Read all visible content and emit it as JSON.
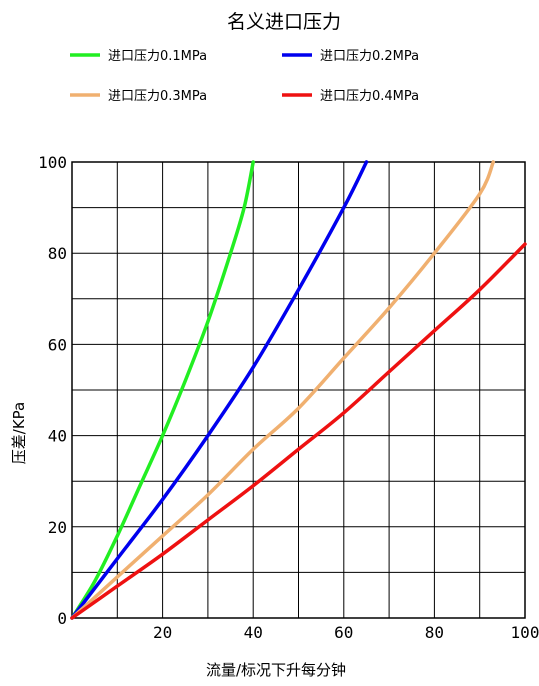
{
  "chart_data": {
    "type": "line",
    "title": "名义进口压力",
    "xlabel": "流量/标况下升每分钟",
    "ylabel": "压差/KPa",
    "xlim": [
      0,
      100
    ],
    "ylim": [
      0,
      100
    ],
    "x_ticks": [
      20,
      40,
      60,
      80,
      100
    ],
    "y_ticks": [
      0,
      20,
      40,
      60,
      80,
      100
    ],
    "x_gridlines": [
      0,
      10,
      20,
      30,
      40,
      50,
      60,
      70,
      80,
      90,
      100
    ],
    "y_gridlines": [
      0,
      10,
      20,
      30,
      40,
      50,
      60,
      70,
      80,
      90,
      100
    ],
    "grid": true,
    "legend_position": "top",
    "series": [
      {
        "name": "进口压力0.1MPa",
        "color": "#22ee22",
        "points": [
          [
            0,
            0
          ],
          [
            5,
            8
          ],
          [
            10,
            18
          ],
          [
            15,
            29
          ],
          [
            20,
            40
          ],
          [
            25,
            52
          ],
          [
            30,
            65
          ],
          [
            35,
            80
          ],
          [
            38,
            90
          ],
          [
            40,
            100
          ]
        ]
      },
      {
        "name": "进口压力0.2MPa",
        "color": "#0000ee",
        "points": [
          [
            0,
            0
          ],
          [
            10,
            13
          ],
          [
            20,
            26
          ],
          [
            30,
            40
          ],
          [
            40,
            55
          ],
          [
            50,
            72
          ],
          [
            60,
            90
          ],
          [
            65,
            100
          ]
        ]
      },
      {
        "name": "进口压力0.3MPa",
        "color": "#f0b070",
        "points": [
          [
            0,
            0
          ],
          [
            10,
            9
          ],
          [
            20,
            18
          ],
          [
            30,
            27
          ],
          [
            40,
            37
          ],
          [
            50,
            46
          ],
          [
            60,
            57
          ],
          [
            70,
            68
          ],
          [
            80,
            80
          ],
          [
            90,
            93
          ],
          [
            93,
            100
          ]
        ]
      },
      {
        "name": "进口压力0.4MPa",
        "color": "#ee1111",
        "points": [
          [
            0,
            0
          ],
          [
            10,
            7
          ],
          [
            20,
            14
          ],
          [
            30,
            21.5
          ],
          [
            40,
            29
          ],
          [
            50,
            37
          ],
          [
            60,
            45
          ],
          [
            70,
            54
          ],
          [
            80,
            63
          ],
          [
            90,
            72
          ],
          [
            100,
            82
          ]
        ]
      }
    ]
  }
}
